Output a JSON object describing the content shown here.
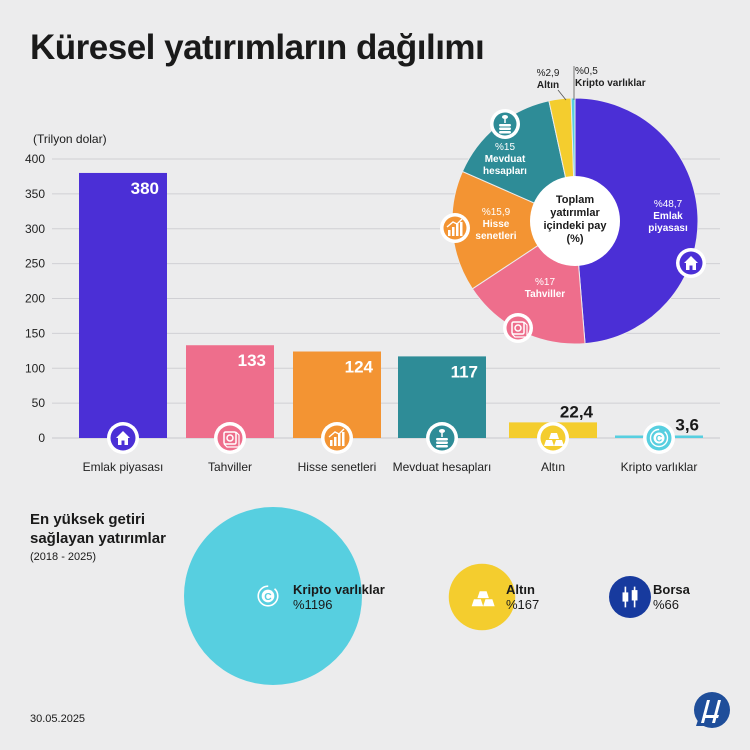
{
  "title": "Küresel yatırımların dağılımı",
  "unit": "(Trilyon dolar)",
  "chart_data": [
    {
      "type": "bar",
      "ylabel": "(Trilyon dolar)",
      "ylim": [
        0,
        400
      ],
      "yticks": [
        0,
        50,
        100,
        150,
        200,
        250,
        300,
        350,
        400
      ],
      "categories": [
        "Emlak piyasası",
        "Tahviller",
        "Hisse senetleri",
        "Mevduat hesapları",
        "Altın",
        "Kripto varlıklar"
      ],
      "values": [
        380,
        133,
        124,
        117,
        22.4,
        3.6
      ],
      "value_labels": [
        "380",
        "133",
        "124",
        "117",
        "22,4",
        "3,6"
      ],
      "colors": [
        "#4b2fd6",
        "#ee6e8c",
        "#f39433",
        "#2e8c97",
        "#f4cd2e",
        "#57cfe0"
      ],
      "icons": [
        "house-icon",
        "bond-icon",
        "growth-chart-icon",
        "coin-stack-icon",
        "gold-bars-icon",
        "crypto-coin-icon"
      ]
    },
    {
      "type": "pie",
      "center_label": [
        "Toplam",
        "yatırımlar",
        "içindeki pay",
        "(%)"
      ],
      "slices": [
        {
          "name": "Emlak piyasası",
          "label_lines": [
            "Emlak",
            "piyasası"
          ],
          "pct_label": "%48,7",
          "value": 48.7,
          "color": "#4b2fd6"
        },
        {
          "name": "Tahviller",
          "label_lines": [
            "Tahviller"
          ],
          "pct_label": "%17",
          "value": 17,
          "color": "#ee6e8c"
        },
        {
          "name": "Hisse senetleri",
          "label_lines": [
            "Hisse",
            "senetleri"
          ],
          "pct_label": "%15,9",
          "value": 15.9,
          "color": "#f39433"
        },
        {
          "name": "Mevduat hesapları",
          "label_lines": [
            "Mevduat",
            "hesapları"
          ],
          "pct_label": "%15",
          "value": 15,
          "color": "#2e8c97"
        },
        {
          "name": "Altın",
          "label_lines": [
            "Altın"
          ],
          "pct_label": "%2,9",
          "value": 2.9,
          "color": "#f4cd2e"
        },
        {
          "name": "Kripto varlıklar",
          "label_lines": [
            "Kripto varlıklar"
          ],
          "pct_label": "%0,5",
          "value": 0.5,
          "color": "#57cfe0"
        }
      ]
    },
    {
      "type": "bubble",
      "title": "En yüksek getiri sağlayan yatırımlar",
      "subtitle": "(2018 - 2025)",
      "items": [
        {
          "name": "Kripto varlıklar",
          "value_label": "%1196",
          "value": 1196,
          "color": "#57cfe0",
          "icon": "crypto-coin-icon"
        },
        {
          "name": "Altın",
          "value_label": "%167",
          "value": 167,
          "color": "#f4cd2e",
          "icon": "gold-bars-icon"
        },
        {
          "name": "Borsa",
          "value_label": "%66",
          "value": 66,
          "color": "#173a9e",
          "icon": "candlestick-icon"
        }
      ]
    }
  ],
  "returns": {
    "title": "En yüksek getiri sağlayan yatırımlar",
    "subtitle": "(2018 - 2025)"
  },
  "date": "30.05.2025",
  "logo_name": "AA"
}
